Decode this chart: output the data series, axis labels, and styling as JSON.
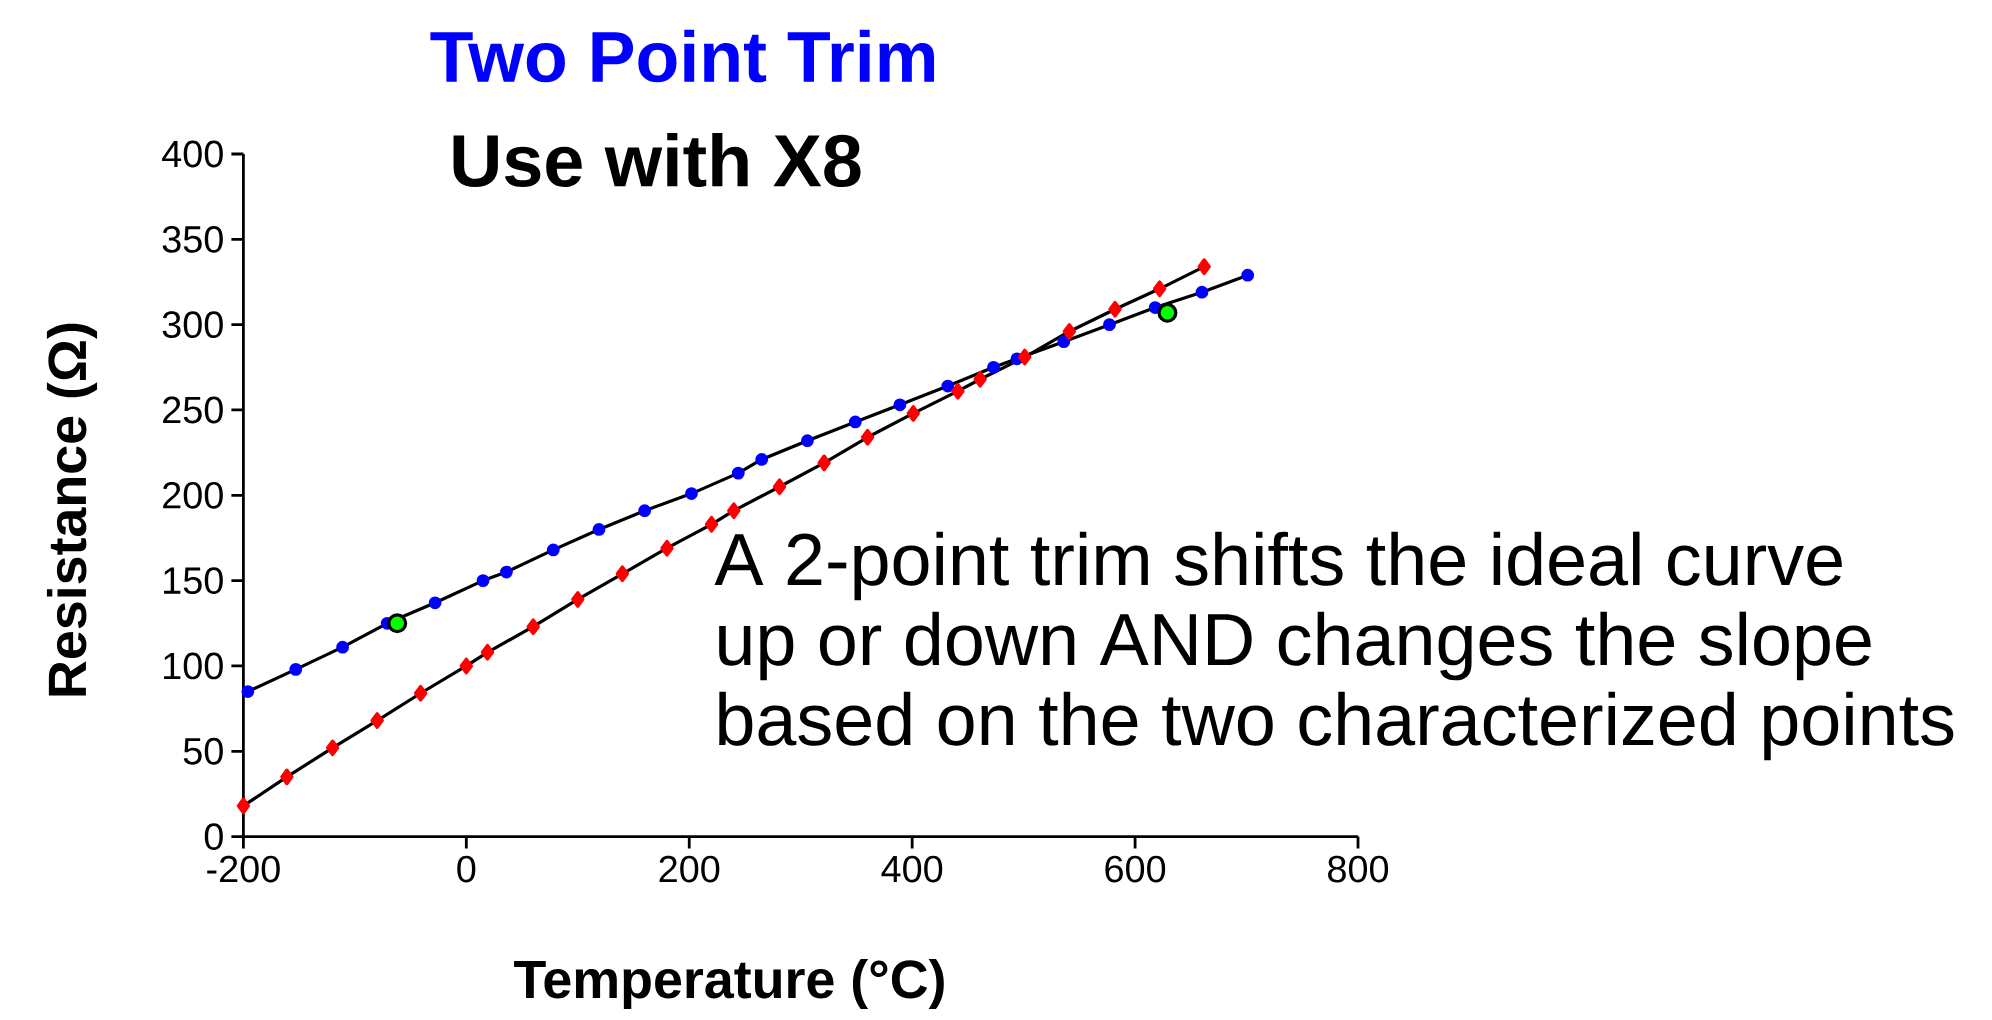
{
  "chart_data": {
    "type": "line",
    "title": "Two Point Trim",
    "subtitle": "Use with X8",
    "xlabel": "Temperature (°C)",
    "ylabel": "Resistance (Ω)",
    "xlim": [
      -200,
      800
    ],
    "xticks": [
      -200,
      0,
      200,
      400,
      600,
      800
    ],
    "ylim": [
      0,
      400
    ],
    "yticks": [
      0,
      50,
      100,
      150,
      200,
      250,
      300,
      350,
      400
    ],
    "grid": false,
    "line_style": "solid",
    "annotations": [
      "A 2-point trim shifts the ideal curve",
      "up or down AND changes the slope",
      "based on the two characterized points"
    ],
    "series": [
      {
        "color": "#0000ff",
        "marker": "circle",
        "x": [
          -196,
          -153,
          -111,
          -71,
          -28,
          15,
          36,
          78,
          119,
          160,
          202,
          244,
          265,
          306,
          349,
          389,
          432,
          473,
          494,
          536,
          577,
          618,
          660,
          701
        ],
        "values": [
          85,
          98,
          111,
          125,
          137,
          150,
          155,
          168,
          180,
          191,
          201,
          213,
          221,
          232,
          243,
          253,
          264,
          275,
          280,
          290,
          300,
          310,
          319,
          329
        ]
      },
      {
        "color": "#ff0000",
        "marker": "diamond",
        "x": [
          -200,
          -161,
          -120,
          -80,
          -41,
          0,
          19,
          60,
          100,
          140,
          180,
          220,
          240,
          281,
          321,
          360,
          401,
          441,
          461,
          501,
          541,
          582,
          622,
          662
        ],
        "values": [
          18,
          35,
          52,
          68,
          84,
          100,
          108,
          123,
          139,
          154,
          169,
          183,
          191,
          205,
          219,
          234,
          248,
          261,
          268,
          281,
          296,
          309,
          321,
          334
        ]
      },
      {
        "type": "scatter",
        "color": "#00ff00",
        "marker": "circle",
        "x": [
          -62,
          629
        ],
        "values": [
          125,
          307
        ]
      }
    ]
  }
}
